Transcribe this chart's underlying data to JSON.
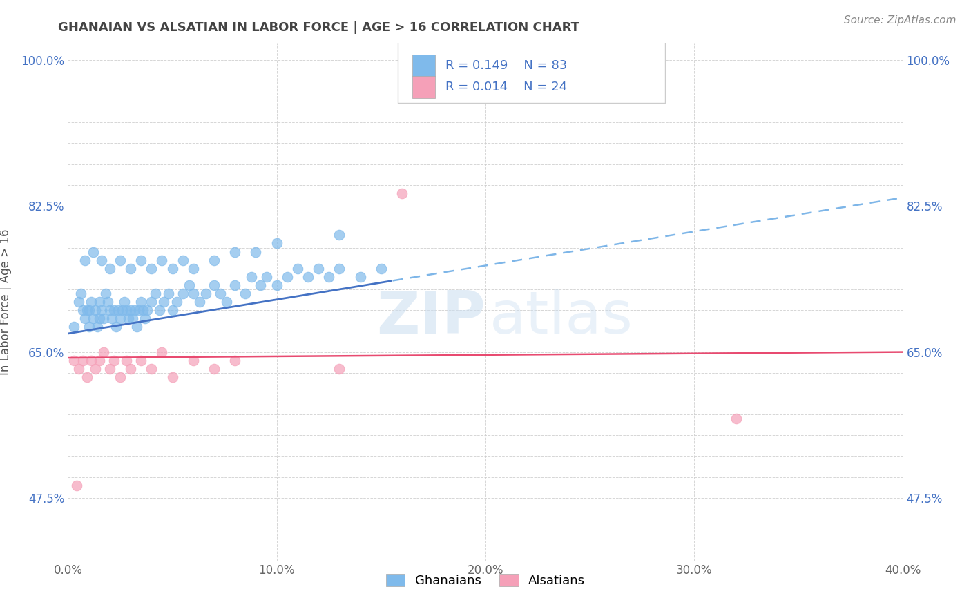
{
  "title": "GHANAIAN VS ALSATIAN IN LABOR FORCE | AGE > 16 CORRELATION CHART",
  "source_text": "Source: ZipAtlas.com",
  "ylabel": "In Labor Force | Age > 16",
  "xlim": [
    0.0,
    0.4
  ],
  "ylim": [
    0.4,
    1.02
  ],
  "yticks": [
    0.475,
    0.5,
    0.525,
    0.55,
    0.575,
    0.6,
    0.625,
    0.65,
    0.675,
    0.7,
    0.725,
    0.75,
    0.775,
    0.8,
    0.825,
    0.85,
    0.875,
    0.9,
    0.925,
    0.95,
    0.975,
    1.0
  ],
  "ytick_show": {
    "0.475": "47.5%",
    "0.65": "65.0%",
    "0.825": "82.5%",
    "1.0": "100.0%"
  },
  "xticks": [
    0.0,
    0.1,
    0.2,
    0.3,
    0.4
  ],
  "xtick_labels": [
    "0.0%",
    "10.0%",
    "20.0%",
    "30.0%",
    "40.0%"
  ],
  "ghanaian_color": "#7FBAEB",
  "alsatian_color": "#F5A0B8",
  "trend_ghanaian_solid_color": "#4472C4",
  "trend_ghanaian_dash_color": "#7EB6E8",
  "trend_alsatian_color": "#E84A70",
  "R_ghanaian": 0.149,
  "N_ghanaian": 83,
  "R_alsatian": 0.014,
  "N_alsatian": 24,
  "watermark_zip": "ZIP",
  "watermark_atlas": "atlas",
  "background_color": "#FFFFFF",
  "grid_color": "#CCCCCC",
  "title_color": "#444444",
  "label_color": "#4472C4",
  "source_color": "#888888",
  "legend_label_ghanaians": "Ghanaians",
  "legend_label_alsatians": "Alsatians",
  "trend_solid_end_x": 0.155,
  "trend_dash_start_x": 0.155,
  "ghanaians_x": [
    0.003,
    0.005,
    0.006,
    0.007,
    0.008,
    0.009,
    0.01,
    0.01,
    0.011,
    0.012,
    0.013,
    0.014,
    0.015,
    0.015,
    0.016,
    0.017,
    0.018,
    0.019,
    0.02,
    0.021,
    0.022,
    0.023,
    0.024,
    0.025,
    0.026,
    0.027,
    0.028,
    0.029,
    0.03,
    0.031,
    0.032,
    0.033,
    0.034,
    0.035,
    0.036,
    0.037,
    0.038,
    0.04,
    0.042,
    0.044,
    0.046,
    0.048,
    0.05,
    0.052,
    0.055,
    0.058,
    0.06,
    0.063,
    0.066,
    0.07,
    0.073,
    0.076,
    0.08,
    0.085,
    0.088,
    0.092,
    0.095,
    0.1,
    0.105,
    0.11,
    0.115,
    0.12,
    0.125,
    0.13,
    0.14,
    0.15,
    0.008,
    0.012,
    0.016,
    0.02,
    0.025,
    0.03,
    0.035,
    0.04,
    0.045,
    0.05,
    0.055,
    0.06,
    0.07,
    0.08,
    0.09,
    0.1,
    0.13
  ],
  "ghanaians_y": [
    0.68,
    0.71,
    0.72,
    0.7,
    0.69,
    0.7,
    0.68,
    0.7,
    0.71,
    0.69,
    0.7,
    0.68,
    0.69,
    0.71,
    0.7,
    0.69,
    0.72,
    0.71,
    0.7,
    0.69,
    0.7,
    0.68,
    0.7,
    0.69,
    0.7,
    0.71,
    0.7,
    0.69,
    0.7,
    0.69,
    0.7,
    0.68,
    0.7,
    0.71,
    0.7,
    0.69,
    0.7,
    0.71,
    0.72,
    0.7,
    0.71,
    0.72,
    0.7,
    0.71,
    0.72,
    0.73,
    0.72,
    0.71,
    0.72,
    0.73,
    0.72,
    0.71,
    0.73,
    0.72,
    0.74,
    0.73,
    0.74,
    0.73,
    0.74,
    0.75,
    0.74,
    0.75,
    0.74,
    0.75,
    0.74,
    0.75,
    0.76,
    0.77,
    0.76,
    0.75,
    0.76,
    0.75,
    0.76,
    0.75,
    0.76,
    0.75,
    0.76,
    0.75,
    0.76,
    0.77,
    0.77,
    0.78,
    0.79
  ],
  "alsatians_x": [
    0.003,
    0.005,
    0.007,
    0.009,
    0.011,
    0.013,
    0.015,
    0.017,
    0.02,
    0.022,
    0.025,
    0.028,
    0.03,
    0.035,
    0.04,
    0.045,
    0.05,
    0.06,
    0.07,
    0.08,
    0.13,
    0.16,
    0.32,
    0.004
  ],
  "alsatians_y": [
    0.64,
    0.63,
    0.64,
    0.62,
    0.64,
    0.63,
    0.64,
    0.65,
    0.63,
    0.64,
    0.62,
    0.64,
    0.63,
    0.64,
    0.63,
    0.65,
    0.62,
    0.64,
    0.63,
    0.64,
    0.63,
    0.84,
    0.57,
    0.49
  ]
}
